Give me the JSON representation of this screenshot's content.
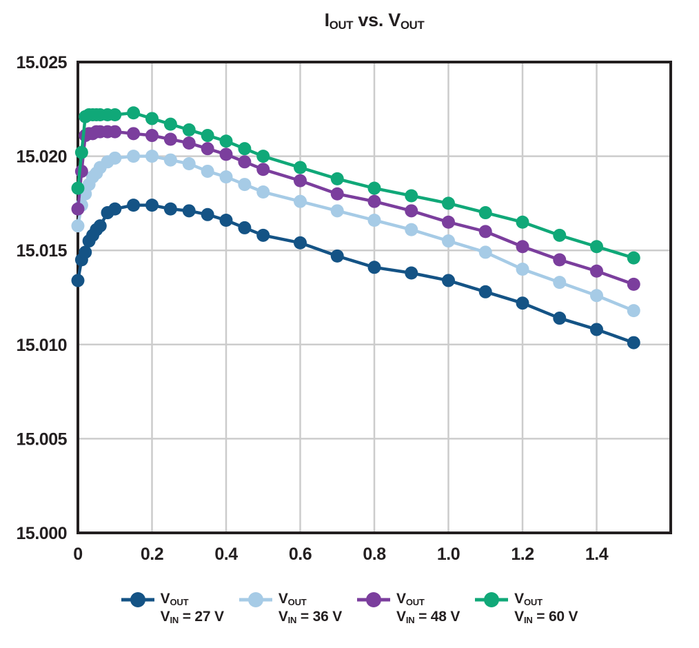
{
  "page": {
    "background": "#ffffff"
  },
  "chart_data": {
    "type": "line",
    "title": "I_{OUT} vs. V_{OUT}",
    "xlabel": "",
    "ylabel": "",
    "xlim": [
      0,
      1.6
    ],
    "ylim": [
      15.0,
      15.025
    ],
    "grid": true,
    "legend_position": "bottom",
    "colors": {
      "grid": "#cccccc",
      "axis": "#231f20",
      "text": "#231f20",
      "background": "#ffffff"
    },
    "xticks": [
      0,
      0.2,
      0.4,
      0.6,
      0.8,
      1.0,
      1.2,
      1.4
    ],
    "xtick_labels": [
      "0",
      "0.2",
      "0.4",
      "0.6",
      "0.8",
      "1.0",
      "1.2",
      "1.4"
    ],
    "yticks": [
      15.0,
      15.005,
      15.01,
      15.015,
      15.02,
      15.025
    ],
    "ytick_labels": [
      "15.000",
      "15.005",
      "15.010",
      "15.015",
      "15.020",
      "15.025"
    ],
    "x": [
      0,
      0.01,
      0.02,
      0.03,
      0.04,
      0.05,
      0.06,
      0.08,
      0.1,
      0.15,
      0.2,
      0.25,
      0.3,
      0.35,
      0.4,
      0.45,
      0.5,
      0.6,
      0.7,
      0.8,
      0.9,
      1.0,
      1.1,
      1.2,
      1.3,
      1.4,
      1.5
    ],
    "series": [
      {
        "key": "vin-27v",
        "name": "V_{OUT}, V_{IN} = 27 V",
        "color": "#145385",
        "values": [
          15.0134,
          15.0145,
          15.0149,
          15.0155,
          15.0158,
          15.0161,
          15.0163,
          15.017,
          15.0172,
          15.0174,
          15.0174,
          15.0172,
          15.0171,
          15.0169,
          15.0166,
          15.0162,
          15.0158,
          15.0154,
          15.0147,
          15.0141,
          15.0138,
          15.0134,
          15.0128,
          15.0122,
          15.0114,
          15.0108,
          15.0101
        ]
      },
      {
        "key": "vin-36v",
        "name": "V_{OUT}, V_{IN} = 36 V",
        "color": "#a6cbe6",
        "values": [
          15.0163,
          15.0174,
          15.018,
          15.0185,
          15.0189,
          15.0191,
          15.0194,
          15.0197,
          15.0199,
          15.02,
          15.02,
          15.0198,
          15.0196,
          15.0192,
          15.0189,
          15.0185,
          15.0181,
          15.0176,
          15.0171,
          15.0166,
          15.0161,
          15.0155,
          15.0149,
          15.014,
          15.0133,
          15.0126,
          15.0118
        ]
      },
      {
        "key": "vin-48v",
        "name": "V_{OUT}, V_{IN} = 48 V",
        "color": "#7b3e9d",
        "values": [
          15.0172,
          15.0192,
          15.0211,
          15.0212,
          15.0212,
          15.0213,
          15.0213,
          15.0213,
          15.0213,
          15.0212,
          15.0211,
          15.0209,
          15.0207,
          15.0204,
          15.0201,
          15.0197,
          15.0193,
          15.0187,
          15.018,
          15.0176,
          15.0171,
          15.0165,
          15.016,
          15.0152,
          15.0145,
          15.0139,
          15.0132
        ]
      },
      {
        "key": "vin-60v",
        "name": "V_{OUT}, V_{IN} = 60 V",
        "color": "#10a878",
        "values": [
          15.0183,
          15.0202,
          15.0221,
          15.0222,
          15.0222,
          15.0222,
          15.0222,
          15.0222,
          15.0222,
          15.0223,
          15.022,
          15.0217,
          15.0214,
          15.0211,
          15.0208,
          15.0204,
          15.02,
          15.0194,
          15.0188,
          15.0183,
          15.0179,
          15.0175,
          15.017,
          15.0165,
          15.0158,
          15.0152,
          15.0146
        ]
      }
    ]
  },
  "legend": {
    "items": [
      {
        "key": "vin-27v",
        "icon": "circle-line-marker-icon",
        "color": "#145385",
        "line1": "V_{OUT}",
        "line2": "V_{IN} = 27 V"
      },
      {
        "key": "vin-36v",
        "icon": "circle-line-marker-icon",
        "color": "#a6cbe6",
        "line1": "V_{OUT}",
        "line2": "V_{IN} = 36 V"
      },
      {
        "key": "vin-48v",
        "icon": "circle-line-marker-icon",
        "color": "#7b3e9d",
        "line1": "V_{OUT}",
        "line2": "V_{IN} = 48 V"
      },
      {
        "key": "vin-60v",
        "icon": "circle-line-marker-icon",
        "color": "#10a878",
        "line1": "V_{OUT}",
        "line2": "V_{IN} = 60 V"
      }
    ]
  }
}
